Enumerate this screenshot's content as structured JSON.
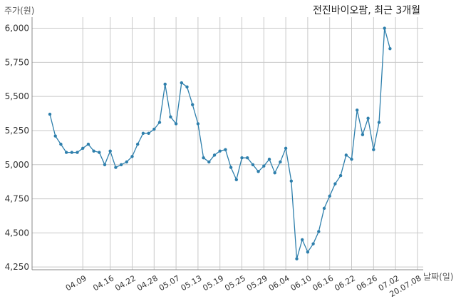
{
  "chart_data": {
    "type": "line",
    "title": "전진바이오팜, 최근 3개월",
    "ylabel": "주가(원)",
    "xlabel": "날짜(일)",
    "ylim": [
      4230,
      6050
    ],
    "yticks": [
      4250,
      4500,
      4750,
      5000,
      5250,
      5500,
      5750,
      6000
    ],
    "ytick_labels": [
      "4,250",
      "4,500",
      "4,750",
      "5,000",
      "5,250",
      "5,500",
      "5,750",
      "6,000"
    ],
    "xtick_labels": [
      "04.09",
      "04.16",
      "04.22",
      "04.28",
      "05.07",
      "05.13",
      "05.19",
      "05.25",
      "05.29",
      "06.04",
      "06.10",
      "06.16",
      "06.22",
      "06.26",
      "07.02",
      "20.07.08"
    ],
    "xtick_positions": [
      6,
      11,
      15,
      19,
      23,
      27,
      31,
      35,
      39,
      43,
      47,
      51,
      55,
      59,
      63,
      67
    ],
    "grid": true,
    "color": "#2e7fac",
    "series": [
      {
        "values": [
          5370,
          5210,
          5150,
          5090,
          5090,
          5090,
          5120,
          5150,
          5100,
          5090,
          5000,
          5100,
          4980,
          5000,
          5020,
          5060,
          5150,
          5230,
          5230,
          5260,
          5310,
          5590,
          5350,
          5300,
          5600,
          5570,
          5440,
          5300,
          5050,
          5020,
          5070,
          5100,
          5110,
          4980,
          4890,
          5050,
          5050,
          5000,
          4950,
          4990,
          5040,
          4940,
          5020,
          5120,
          4880,
          4310,
          4450,
          4360,
          4420,
          4510,
          4680,
          4770,
          4860,
          4920,
          5070,
          5040,
          5400,
          5220,
          5340,
          5110,
          5310,
          6000,
          5850
        ]
      }
    ]
  }
}
